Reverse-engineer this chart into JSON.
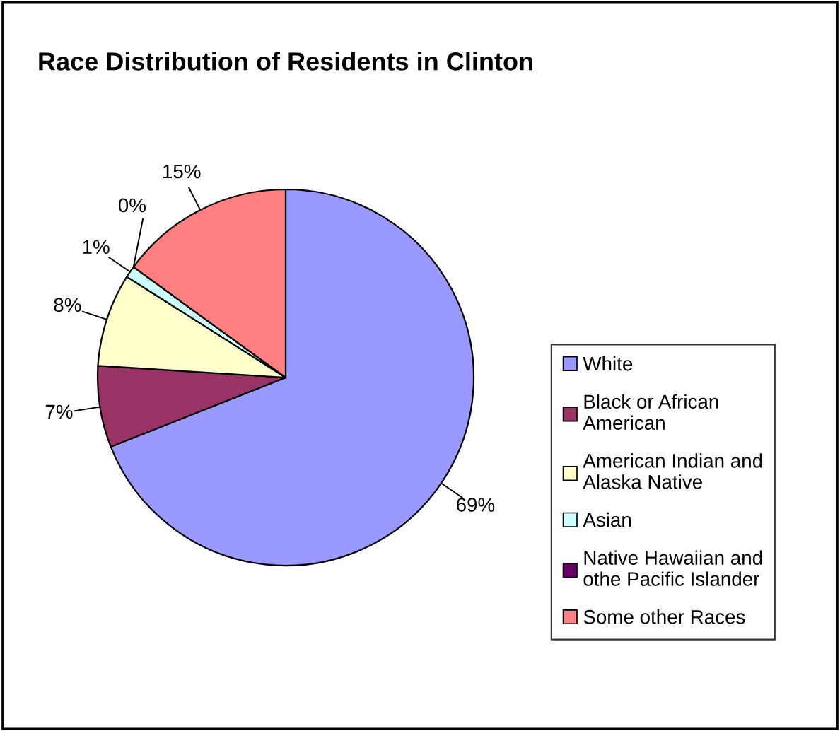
{
  "chart_data": {
    "type": "pie",
    "title": "Race Distribution of Residents in Clinton",
    "categories": [
      "White",
      "Black or African American",
      "American Indian and Alaska Native",
      "Asian",
      "Native Hawaiian and othe Pacific Islander",
      "Some other Races"
    ],
    "values": [
      69,
      7,
      8,
      1,
      0,
      15
    ],
    "colors": [
      "#9999ff",
      "#993366",
      "#ffffcc",
      "#ccffff",
      "#660066",
      "#ff8080"
    ],
    "value_labels": [
      "69%",
      "7%",
      "8%",
      "1%",
      "0%",
      "15%"
    ],
    "legend": "right"
  }
}
